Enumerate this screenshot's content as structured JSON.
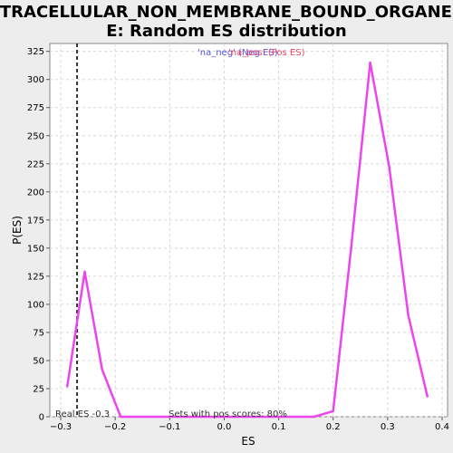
{
  "chart_data": {
    "type": "line",
    "title_line1": "INTRACELLULAR_NON_MEMBRANE_BOUND_ORGANELL",
    "title_line2": "E: Random ES distribution",
    "xlabel": "ES",
    "ylabel": "P(ES)",
    "xlim": [
      -0.32,
      0.41
    ],
    "ylim": [
      0,
      332
    ],
    "xticks": [
      -0.3,
      -0.2,
      -0.1,
      0.0,
      0.1,
      0.2,
      0.3,
      0.4
    ],
    "xtick_labels": [
      "−0.3",
      "−0.2",
      "−0.1",
      "0.0",
      "0.1",
      "0.2",
      "0.3",
      "0.4"
    ],
    "yticks": [
      0,
      25,
      50,
      75,
      100,
      125,
      150,
      175,
      200,
      225,
      250,
      275,
      300,
      325
    ],
    "grid": true,
    "legend": {
      "placement": "top-center",
      "neg_label": "'na_neg' (Neg ES)",
      "pos_label": "'na_pos' (Pos ES)",
      "neg_color": "#5555dd",
      "pos_color": "#ee4466"
    },
    "real_es": -0.27,
    "real_es_label": "Real ES -0.3",
    "pos_score_label": "Sets with pos scores: 80%",
    "line_color": "#ee44ee",
    "series": [
      {
        "x": [
          -0.288,
          -0.256,
          -0.224,
          -0.19,
          -0.155,
          -0.12,
          -0.085,
          -0.05,
          -0.015,
          0.02,
          0.055,
          0.09,
          0.125,
          0.165,
          0.2,
          0.233,
          0.268,
          0.303,
          0.338,
          0.373
        ],
        "y": [
          27,
          129,
          42,
          0,
          0,
          0,
          0,
          0,
          0,
          0,
          0,
          0,
          0,
          0,
          5,
          150,
          315,
          222,
          90,
          18
        ]
      }
    ]
  }
}
